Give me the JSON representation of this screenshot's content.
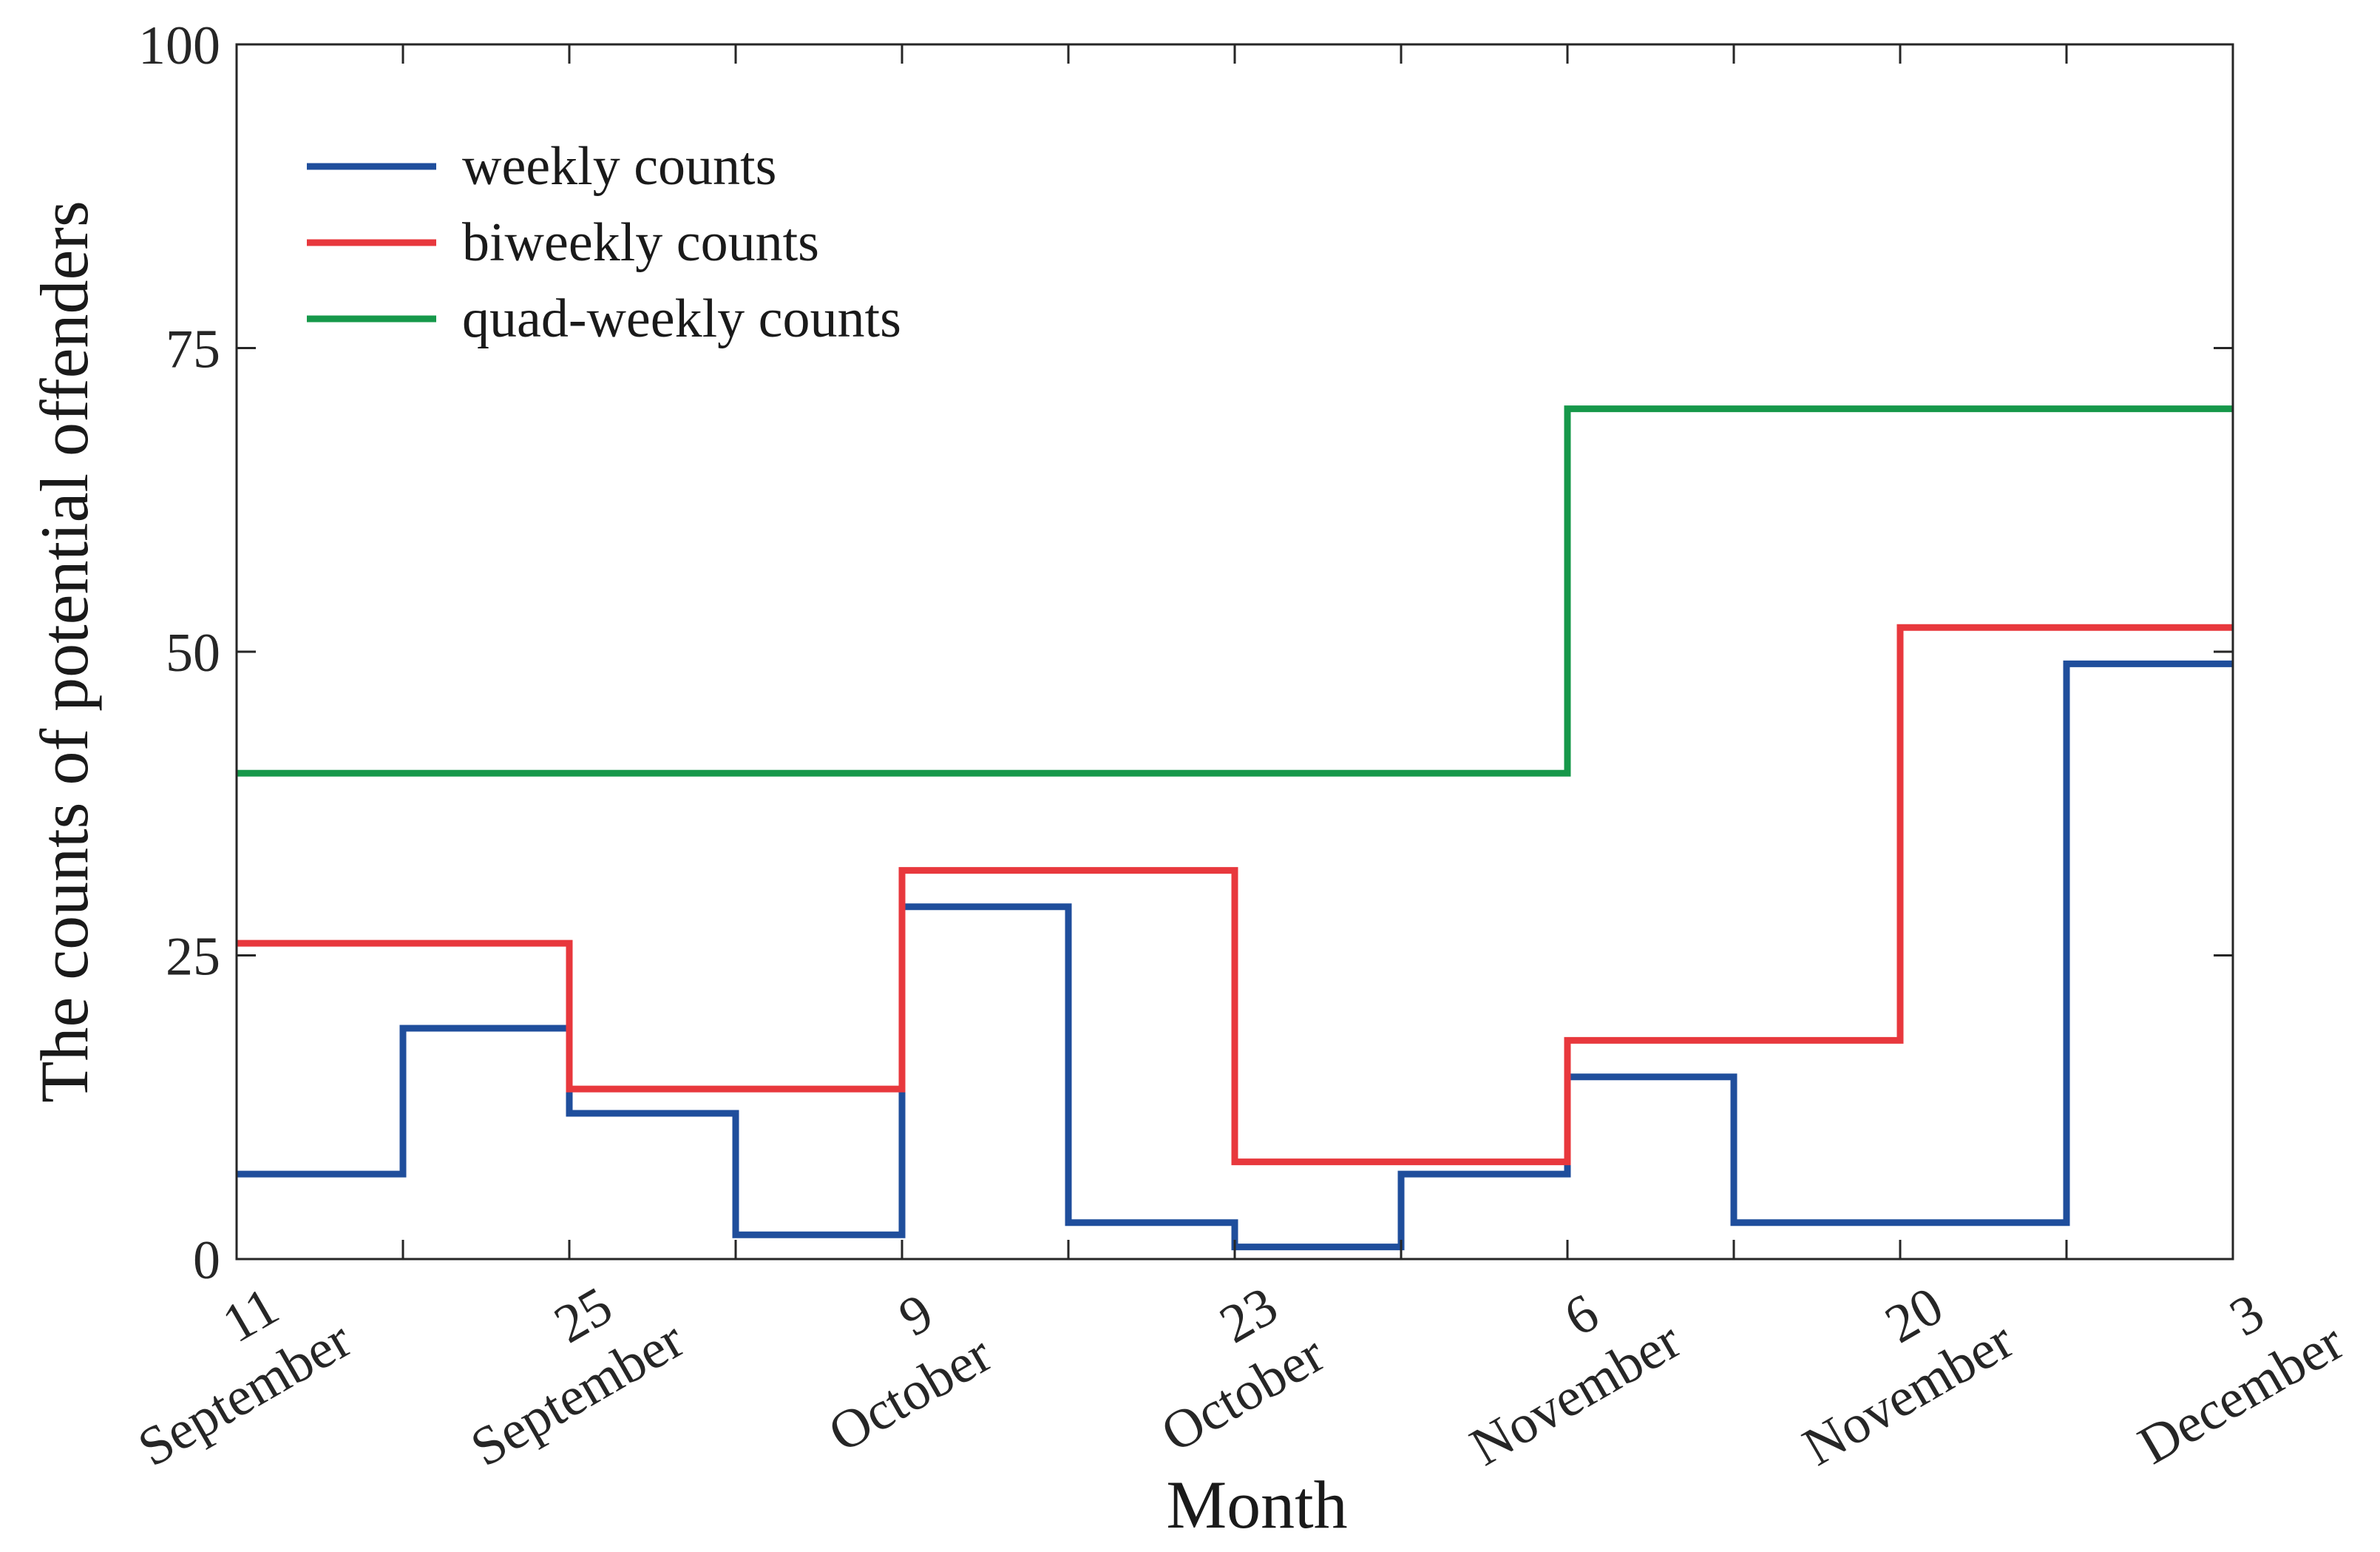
{
  "chart_data": {
    "type": "line",
    "step": true,
    "xlabel": "Month",
    "ylabel": "The counts of potential offenders",
    "ylim": [
      0,
      100
    ],
    "yticks": [
      0,
      25,
      50,
      75,
      100
    ],
    "xlim": [
      0,
      12
    ],
    "x_tick_labels": [
      {
        "day": "11",
        "month": "September"
      },
      {
        "day": "25",
        "month": "September"
      },
      {
        "day": "9",
        "month": "October"
      },
      {
        "day": "23",
        "month": "October"
      },
      {
        "day": "6",
        "month": "November"
      },
      {
        "day": "20",
        "month": "November"
      },
      {
        "day": "3",
        "month": "December"
      }
    ],
    "legend_position": "top-left",
    "series": [
      {
        "name": "weekly counts",
        "color": "#1f4e9c",
        "bin_width": 1,
        "values": [
          7,
          19,
          12,
          2,
          29,
          3,
          1,
          7,
          15,
          3,
          3,
          49
        ]
      },
      {
        "name": "biweekly counts",
        "color": "#e8383d",
        "bin_width": 2,
        "values": [
          26,
          14,
          32,
          8,
          18,
          52
        ]
      },
      {
        "name": "quad-weekly counts",
        "color": "#16984a",
        "bin_width": 4,
        "values": [
          40,
          40,
          70
        ]
      }
    ]
  }
}
